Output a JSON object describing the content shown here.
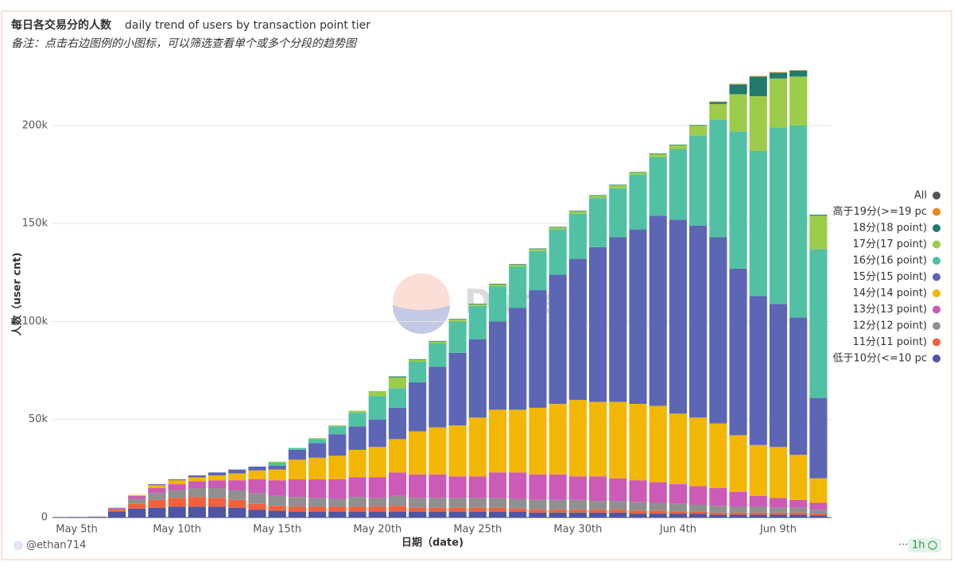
{
  "chart_data": {
    "type": "stacked_bar",
    "title": "每日各交易分的人数",
    "subtitle": "daily trend of users by transaction point tier",
    "note": "备注：点击右边图例的小图标，可以筛选查看单个或多个分段的趋势图",
    "xlabel": "日期（date)",
    "ylabel": "人数（user cnt)",
    "watermark": "Dune",
    "author": "@ethan714",
    "refresh": "1h",
    "categories": [
      "May 5th",
      null,
      null,
      null,
      null,
      "May 10th",
      null,
      null,
      null,
      null,
      "May 15th",
      null,
      null,
      null,
      null,
      "May 20th",
      null,
      null,
      null,
      null,
      "May 25th",
      null,
      null,
      null,
      null,
      "May 30th",
      null,
      null,
      null,
      null,
      "Jun 4th",
      null,
      null,
      null,
      null,
      "Jun 9th",
      null,
      null
    ],
    "ylim": [
      0,
      230000
    ],
    "yticks": [
      0,
      {
        "value": 50000,
        "label": "50k"
      },
      {
        "value": 100000,
        "label": "100k"
      },
      {
        "value": 150000,
        "label": "150k"
      },
      {
        "value": 200000,
        "label": "200k"
      }
    ],
    "grid": true,
    "legend": "right",
    "series": [
      {
        "name": "低于10分(<=10 pc",
        "color": "#4f55a3",
        "values": [
          200,
          300,
          3000,
          4500,
          5000,
          5500,
          5500,
          5500,
          5000,
          4000,
          3500,
          3000,
          3000,
          3000,
          3000,
          3000,
          3000,
          3000,
          3000,
          3000,
          3000,
          3000,
          3000,
          2500,
          2500,
          2500,
          2500,
          2500,
          2000,
          2000,
          2000,
          2000,
          1500,
          1500,
          1500,
          1500,
          1500,
          1000
        ]
      },
      {
        "name": "11分(11 point)",
        "color": "#f0613c",
        "values": [
          0,
          100,
          1000,
          2500,
          4000,
          4500,
          5000,
          4500,
          4000,
          3000,
          2500,
          2500,
          2500,
          2500,
          2500,
          2500,
          3000,
          2000,
          2000,
          2000,
          2000,
          2000,
          1500,
          1500,
          1500,
          1500,
          1500,
          1500,
          1500,
          1500,
          1000,
          1000,
          1000,
          1000,
          1000,
          1000,
          1000,
          1000
        ]
      },
      {
        "name": "12分(12 point)",
        "color": "#909090",
        "values": [
          0,
          100,
          500,
          2500,
          3500,
          4000,
          4500,
          5000,
          5000,
          5500,
          5000,
          5000,
          4500,
          4000,
          5000,
          4500,
          5000,
          5000,
          5000,
          5000,
          5000,
          5000,
          5000,
          5000,
          5000,
          5000,
          4500,
          4500,
          4500,
          4000,
          4000,
          3500,
          3500,
          3000,
          3000,
          2500,
          2500,
          2000
        ]
      },
      {
        "name": "13分(13 point)",
        "color": "#cc5ab6",
        "values": [
          100,
          0,
          500,
          1500,
          2500,
          3000,
          3500,
          4000,
          5000,
          7000,
          8000,
          9000,
          9500,
          10000,
          10000,
          10500,
          12000,
          12000,
          12000,
          11000,
          11000,
          13000,
          13500,
          13000,
          13000,
          12000,
          12500,
          11500,
          11000,
          10500,
          10000,
          9500,
          9000,
          7500,
          5500,
          5000,
          4000,
          3500
        ]
      },
      {
        "name": "14分(14 point)",
        "color": "#f2b705",
        "values": [
          0,
          0,
          0,
          500,
          1500,
          2000,
          2000,
          2500,
          3500,
          4500,
          5500,
          10000,
          11000,
          12000,
          14000,
          15500,
          17000,
          22000,
          24000,
          26000,
          30000,
          32000,
          32000,
          34000,
          36000,
          39000,
          38000,
          39000,
          39000,
          39000,
          36000,
          35000,
          33000,
          29000,
          26000,
          26000,
          23000,
          12500
        ]
      },
      {
        "name": "15分(15 point)",
        "color": "#5c66b4",
        "values": [
          0,
          0,
          0,
          0,
          500,
          500,
          1000,
          1500,
          2000,
          2000,
          2000,
          5000,
          7500,
          11000,
          12000,
          14000,
          16000,
          25000,
          31000,
          37000,
          40000,
          45000,
          52000,
          60000,
          66000,
          72000,
          79000,
          84000,
          89000,
          97000,
          99000,
          98000,
          95000,
          85000,
          76000,
          73000,
          70000,
          41000
        ]
      },
      {
        "name": "16分(16 point)",
        "color": "#52c0a4",
        "values": [
          0,
          0,
          0,
          0,
          0,
          0,
          0,
          0,
          0,
          0,
          1500,
          1000,
          2000,
          4000,
          7000,
          12000,
          10000,
          10500,
          12000,
          16000,
          17000,
          18000,
          21000,
          20000,
          23000,
          23000,
          25000,
          25000,
          28000,
          30000,
          36000,
          46000,
          60000,
          70000,
          74000,
          90000,
          98000,
          76000
        ]
      },
      {
        "name": "17分(17 point)",
        "color": "#9dcc4a",
        "values": [
          0,
          0,
          0,
          0,
          0,
          0,
          0,
          0,
          0,
          0,
          500,
          0,
          500,
          500,
          1000,
          2500,
          5500,
          1000,
          800,
          1000,
          800,
          1000,
          1000,
          1000,
          1000,
          1200,
          1200,
          1500,
          1000,
          1500,
          2000,
          5000,
          8000,
          19000,
          28000,
          25000,
          25000,
          17000
        ]
      },
      {
        "name": "18分(18 point)",
        "color": "#217a6c",
        "values": [
          0,
          0,
          0,
          0,
          0,
          0,
          0,
          0,
          0,
          0,
          0,
          0,
          0,
          0,
          0,
          0,
          500,
          300,
          300,
          300,
          300,
          300,
          300,
          300,
          300,
          300,
          300,
          300,
          300,
          300,
          300,
          300,
          1000,
          5000,
          10000,
          3000,
          3000,
          500
        ]
      },
      {
        "name": "高于19分(>=19 pc",
        "color": "#e8891f",
        "values": [
          0,
          0,
          0,
          0,
          0,
          0,
          0,
          0,
          0,
          0,
          0,
          0,
          0,
          0,
          0,
          0,
          0,
          0,
          0,
          0,
          0,
          0,
          0,
          0,
          0,
          0,
          0,
          0,
          0,
          0,
          0,
          0,
          300,
          300,
          300,
          300,
          300,
          0
        ]
      },
      {
        "name": "All",
        "color": "#555555",
        "values": [
          null,
          null,
          null,
          null,
          null,
          null,
          null,
          null,
          null,
          null,
          null,
          null,
          null,
          null,
          null,
          null,
          null,
          null,
          null,
          null,
          null,
          null,
          null,
          null,
          null,
          null,
          null,
          null,
          null,
          null,
          null,
          null,
          null,
          null,
          null,
          null,
          null,
          null
        ]
      }
    ]
  }
}
